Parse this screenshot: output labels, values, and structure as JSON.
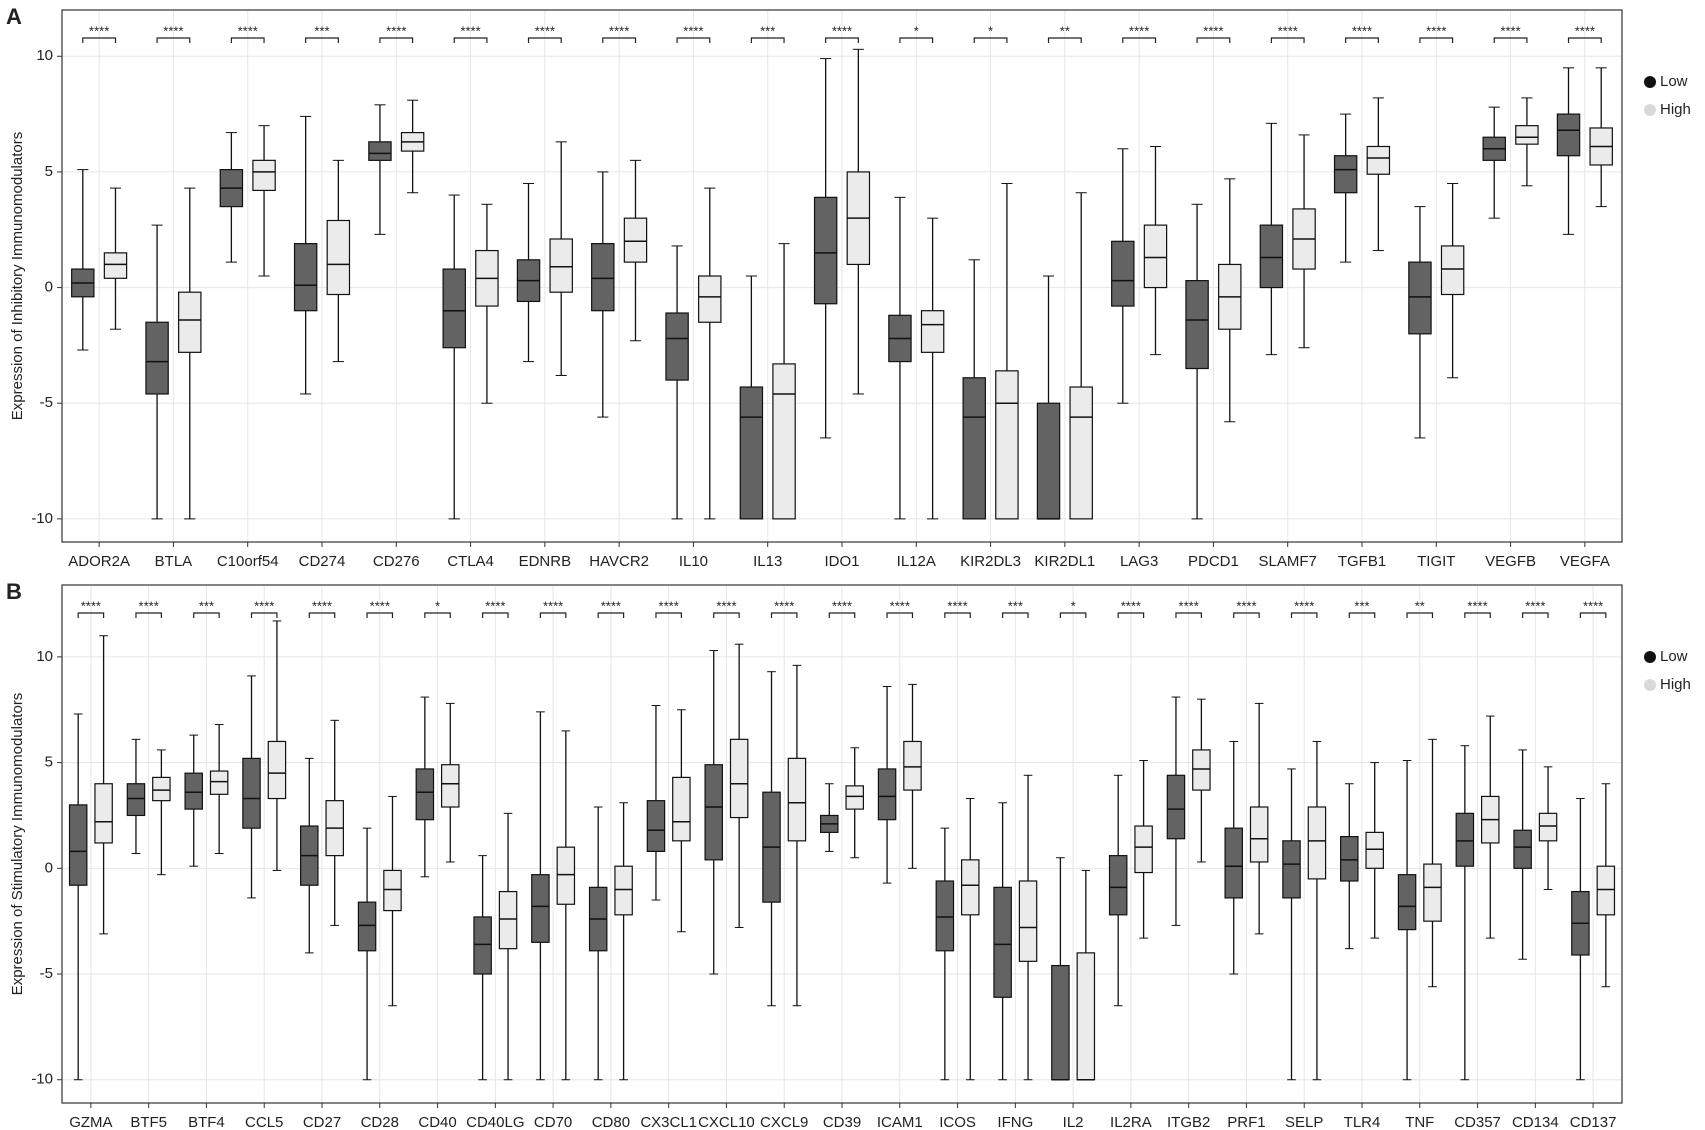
{
  "chart_data": [
    {
      "type": "box",
      "panel_label": "A",
      "ylabel": "Expression of Inhibitory Immunomodulators",
      "categories": [
        "ADOR2A",
        "BTLA",
        "C10orf54",
        "CD274",
        "CD276",
        "CTLA4",
        "EDNRB",
        "HAVCR2",
        "IL10",
        "IL13",
        "IDO1",
        "IL12A",
        "KIR2DL3",
        "KIR2DL1",
        "LAG3",
        "PDCD1",
        "SLAMF7",
        "TGFB1",
        "TIGIT",
        "VEGFB",
        "VEGFA"
      ],
      "significance": [
        "****",
        "****",
        "****",
        "***",
        "****",
        "****",
        "****",
        "****",
        "****",
        "***",
        "****",
        "*",
        "*",
        "**",
        "****",
        "****",
        "****",
        "****",
        "****",
        "****",
        "****"
      ],
      "series": [
        {
          "name": "Low",
          "color": "#636363",
          "min": [
            -2.7,
            -10,
            1.1,
            -4.6,
            2.3,
            -10,
            -3.2,
            -5.6,
            -10,
            -10,
            -6.5,
            -10,
            -10,
            -10,
            -5.0,
            -10,
            -2.9,
            1.1,
            -6.5,
            3.0,
            2.3
          ],
          "q1": [
            -0.4,
            -4.6,
            3.5,
            -1.0,
            5.5,
            -2.6,
            -0.6,
            -1.0,
            -4.0,
            -10,
            -0.7,
            -3.2,
            -10,
            -10,
            -0.8,
            -3.5,
            0.0,
            4.1,
            -2.0,
            5.5,
            5.7
          ],
          "median": [
            0.2,
            -3.2,
            4.3,
            0.1,
            5.8,
            -1.0,
            0.3,
            0.4,
            -2.2,
            -5.6,
            1.5,
            -2.2,
            -5.6,
            -10,
            0.3,
            -1.4,
            1.3,
            5.1,
            -0.4,
            6.0,
            6.8
          ],
          "q3": [
            0.8,
            -1.5,
            5.1,
            1.9,
            6.3,
            0.8,
            1.2,
            1.9,
            -1.1,
            -4.3,
            3.9,
            -1.2,
            -3.9,
            -5.0,
            2.0,
            0.3,
            2.7,
            5.7,
            1.1,
            6.5,
            7.5
          ],
          "max": [
            5.1,
            2.7,
            6.7,
            7.4,
            7.9,
            4.0,
            4.5,
            5.0,
            1.8,
            0.5,
            9.9,
            3.9,
            1.2,
            0.5,
            6.0,
            3.6,
            7.1,
            7.5,
            3.5,
            7.8,
            9.5
          ]
        },
        {
          "name": "High",
          "color": "#ebebeb",
          "min": [
            -1.8,
            -10,
            0.5,
            -3.2,
            4.1,
            -5.0,
            -3.8,
            -2.3,
            -10,
            -10,
            -4.6,
            -10,
            -10,
            -10,
            -2.9,
            -5.8,
            -2.6,
            1.6,
            -3.9,
            4.4,
            3.5
          ],
          "q1": [
            0.4,
            -2.8,
            4.2,
            -0.3,
            5.9,
            -0.8,
            -0.2,
            1.1,
            -1.5,
            -10,
            1.0,
            -2.8,
            -10,
            -10,
            0.0,
            -1.8,
            0.8,
            4.9,
            -0.3,
            6.2,
            5.3
          ],
          "median": [
            1.0,
            -1.4,
            5.0,
            1.0,
            6.3,
            0.4,
            0.9,
            2.0,
            -0.4,
            -4.6,
            3.0,
            -1.6,
            -5.0,
            -5.6,
            1.3,
            -0.4,
            2.1,
            5.6,
            0.8,
            6.5,
            6.1
          ],
          "q3": [
            1.5,
            -0.2,
            5.5,
            2.9,
            6.7,
            1.6,
            2.1,
            3.0,
            0.5,
            -3.3,
            5.0,
            -1.0,
            -3.6,
            -4.3,
            2.7,
            1.0,
            3.4,
            6.1,
            1.8,
            7.0,
            6.9
          ],
          "max": [
            4.3,
            4.3,
            7.0,
            5.5,
            8.1,
            3.6,
            6.3,
            5.5,
            4.3,
            1.9,
            10.3,
            3.0,
            4.5,
            4.1,
            6.1,
            4.7,
            6.6,
            8.2,
            4.5,
            8.2,
            9.5
          ]
        }
      ],
      "ylim": [
        -11,
        12
      ],
      "yticks": [
        -10,
        -5,
        0,
        5,
        10
      ],
      "grid": true,
      "legend": "right"
    },
    {
      "type": "box",
      "panel_label": "B",
      "ylabel": "Expression of Stimulatory Immunomodulators",
      "categories": [
        "GZMA",
        "BTF5",
        "BTF4",
        "CCL5",
        "CD27",
        "CD28",
        "CD40",
        "CD40LG",
        "CD70",
        "CD80",
        "CX3CL1",
        "CXCL10",
        "CXCL9",
        "CD39",
        "ICAM1",
        "ICOS",
        "IFNG",
        "IL2",
        "IL2RA",
        "ITGB2",
        "PRF1",
        "SELP",
        "TLR4",
        "TNF",
        "CD357",
        "CD134",
        "CD137"
      ],
      "significance": [
        "****",
        "****",
        "***",
        "****",
        "****",
        "****",
        "*",
        "****",
        "****",
        "****",
        "****",
        "****",
        "****",
        "****",
        "****",
        "****",
        "***",
        "*",
        "****",
        "****",
        "****",
        "****",
        "***",
        "**",
        "****",
        "****",
        "****"
      ],
      "series": [
        {
          "name": "Low",
          "color": "#636363",
          "min": [
            -10,
            0.7,
            0.1,
            -1.4,
            -4.0,
            -10,
            -0.4,
            -10,
            -10,
            -10,
            -1.5,
            -5.0,
            -6.5,
            0.8,
            -0.7,
            -10,
            -10,
            -10,
            -6.5,
            -2.7,
            -5.0,
            -10,
            -3.8,
            -10,
            -10,
            -4.3,
            -10
          ],
          "q1": [
            -0.8,
            2.5,
            2.8,
            1.9,
            -0.8,
            -3.9,
            2.3,
            -5.0,
            -3.5,
            -3.9,
            0.8,
            0.4,
            -1.6,
            1.7,
            2.3,
            -3.9,
            -6.1,
            -10,
            -2.2,
            1.4,
            -1.4,
            -1.4,
            -0.6,
            -2.9,
            0.1,
            0.0,
            -4.1
          ],
          "median": [
            0.8,
            3.3,
            3.6,
            3.3,
            0.6,
            -2.7,
            3.6,
            -3.6,
            -1.8,
            -2.4,
            1.8,
            2.9,
            1.0,
            2.1,
            3.4,
            -2.3,
            -3.6,
            -10,
            -0.9,
            2.8,
            0.1,
            0.2,
            0.4,
            -1.8,
            1.3,
            1.0,
            -2.6
          ],
          "q3": [
            3.0,
            4.0,
            4.5,
            5.2,
            2.0,
            -1.6,
            4.7,
            -2.3,
            -0.3,
            -0.9,
            3.2,
            4.9,
            3.6,
            2.5,
            4.7,
            -0.6,
            -0.9,
            -4.6,
            0.6,
            4.4,
            1.9,
            1.3,
            1.5,
            -0.3,
            2.6,
            1.8,
            -1.1
          ],
          "max": [
            7.3,
            6.1,
            6.3,
            9.1,
            5.2,
            1.9,
            8.1,
            0.6,
            7.4,
            2.9,
            7.7,
            10.3,
            9.3,
            4.0,
            8.6,
            1.9,
            3.1,
            0.5,
            4.4,
            8.1,
            6.0,
            4.7,
            4.0,
            5.1,
            5.8,
            5.6,
            3.3
          ]
        },
        {
          "name": "High",
          "color": "#ebebeb",
          "min": [
            -3.1,
            -0.3,
            0.7,
            -0.1,
            -2.7,
            -6.5,
            0.3,
            -10,
            -10,
            -10,
            -3.0,
            -2.8,
            -6.5,
            0.5,
            0.0,
            -10,
            -10,
            -10,
            -3.3,
            0.3,
            -3.1,
            -10,
            -3.3,
            -5.6,
            -3.3,
            -1.0,
            -5.6
          ],
          "q1": [
            1.2,
            3.2,
            3.5,
            3.3,
            0.6,
            -2.0,
            2.9,
            -3.8,
            -1.7,
            -2.2,
            1.3,
            2.4,
            1.3,
            2.8,
            3.7,
            -2.2,
            -4.4,
            -10,
            -0.2,
            3.7,
            0.3,
            -0.5,
            0.0,
            -2.5,
            1.2,
            1.3,
            -2.2
          ],
          "median": [
            2.2,
            3.7,
            4.1,
            4.5,
            1.9,
            -1.0,
            4.0,
            -2.4,
            -0.3,
            -1.0,
            2.2,
            4.0,
            3.1,
            3.4,
            4.8,
            -0.8,
            -2.8,
            -10,
            1.0,
            4.7,
            1.4,
            1.3,
            0.9,
            -0.9,
            2.3,
            2.0,
            -1.0
          ],
          "q3": [
            4.0,
            4.3,
            4.6,
            6.0,
            3.2,
            -0.1,
            4.9,
            -1.1,
            1.0,
            0.1,
            4.3,
            6.1,
            5.2,
            3.9,
            6.0,
            0.4,
            -0.6,
            -4.0,
            2.0,
            5.6,
            2.9,
            2.9,
            1.7,
            0.2,
            3.4,
            2.6,
            0.1
          ],
          "max": [
            11.0,
            5.6,
            6.8,
            11.7,
            7.0,
            3.4,
            7.8,
            2.6,
            6.5,
            3.1,
            7.5,
            10.6,
            9.6,
            5.7,
            8.7,
            3.3,
            4.4,
            -0.1,
            5.1,
            8.0,
            7.8,
            6.0,
            5.0,
            6.1,
            7.2,
            4.8,
            4.0
          ]
        }
      ],
      "ylim": [
        -11.1,
        13.4
      ],
      "yticks": [
        -10,
        -5,
        0,
        5,
        10
      ],
      "grid": true,
      "legend": "right"
    }
  ]
}
